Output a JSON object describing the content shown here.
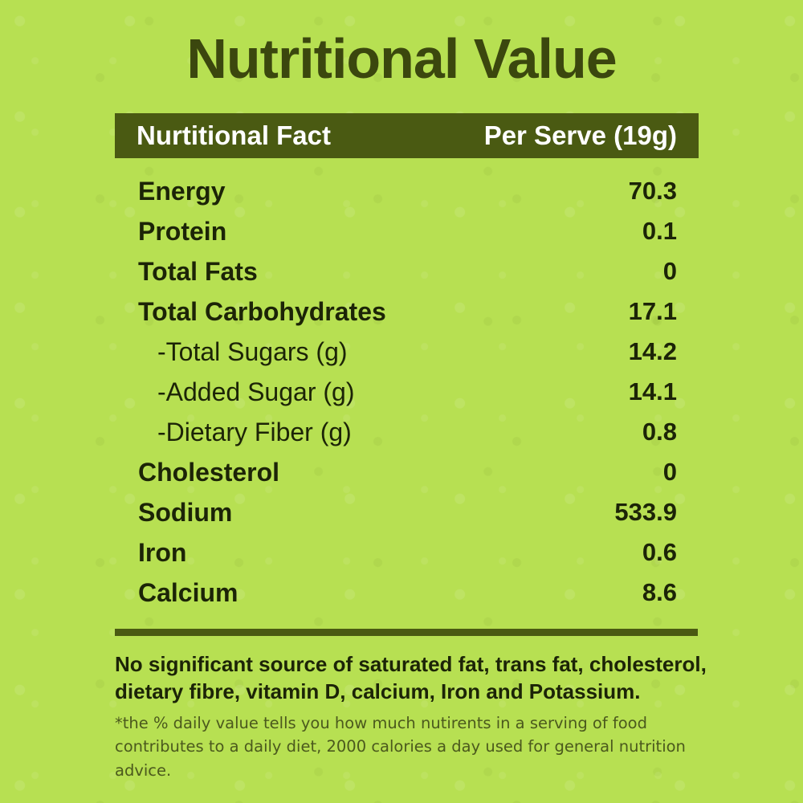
{
  "page": {
    "title": "Nutritional Value",
    "colors": {
      "background": "#b7e052",
      "bar": "#4a5a12",
      "title_text": "#3b470e",
      "row_text": "#1c2407",
      "header_text": "#ffffff",
      "small_note_text": "#4b591d"
    }
  },
  "table": {
    "header": {
      "fact_label": "Nurtitional Fact",
      "serve_label": "Per Serve (19g)"
    },
    "rows": [
      {
        "label": "Energy",
        "value": "70.3",
        "indent": false
      },
      {
        "label": "Protein",
        "value": "0.1",
        "indent": false
      },
      {
        "label": "Total Fats",
        "value": "0",
        "indent": false
      },
      {
        "label": "Total Carbohydrates",
        "value": "17.1",
        "indent": false
      },
      {
        "label": "-Total Sugars (g)",
        "value": "14.2",
        "indent": true
      },
      {
        "label": "-Added Sugar (g)",
        "value": "14.1",
        "indent": true
      },
      {
        "label": "-Dietary Fiber (g)",
        "value": "0.8",
        "indent": true
      },
      {
        "label": "Cholesterol",
        "value": "0",
        "indent": false
      },
      {
        "label": "Sodium",
        "value": "533.9",
        "indent": false
      },
      {
        "label": "Iron",
        "value": "0.6",
        "indent": false
      },
      {
        "label": "Calcium",
        "value": "8.6",
        "indent": false
      }
    ]
  },
  "notes": {
    "bold_note": "No significant source of saturated fat, trans fat, cholesterol, dietary fibre, vitamin D, calcium, Iron and Potassium.",
    "small_note": "*the % daily value tells you how much nutirents in a serving of food contributes to a daily diet, 2000 calories a day used for general nutrition advice."
  }
}
